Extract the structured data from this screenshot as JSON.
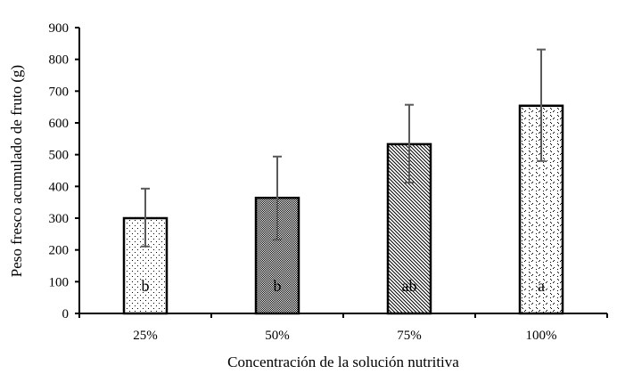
{
  "chart_data": {
    "type": "bar",
    "title": "",
    "xlabel": "Concentración de la solución nutritiva",
    "ylabel": "Peso fresco acumulado de fruto (g)",
    "categories": [
      "25%",
      "50%",
      "75%",
      "100%"
    ],
    "values": [
      300,
      364,
      533,
      654
    ],
    "error_upper": [
      393,
      494,
      657,
      831
    ],
    "error_lower": [
      211,
      232,
      412,
      480
    ],
    "significance_letters": [
      "b",
      "b",
      "ab",
      "a"
    ],
    "patterns": [
      "sparse-dots",
      "dense-checker",
      "diagonal-hatch",
      "scattered-dashes"
    ],
    "ylim": [
      0,
      900
    ],
    "yticks": [
      0,
      100,
      200,
      300,
      400,
      500,
      600,
      700,
      800,
      900
    ],
    "grid": false,
    "legend": null,
    "colors": {
      "bar_stroke": "#000000",
      "error_bar": "#595959",
      "axis": "#000000"
    }
  }
}
